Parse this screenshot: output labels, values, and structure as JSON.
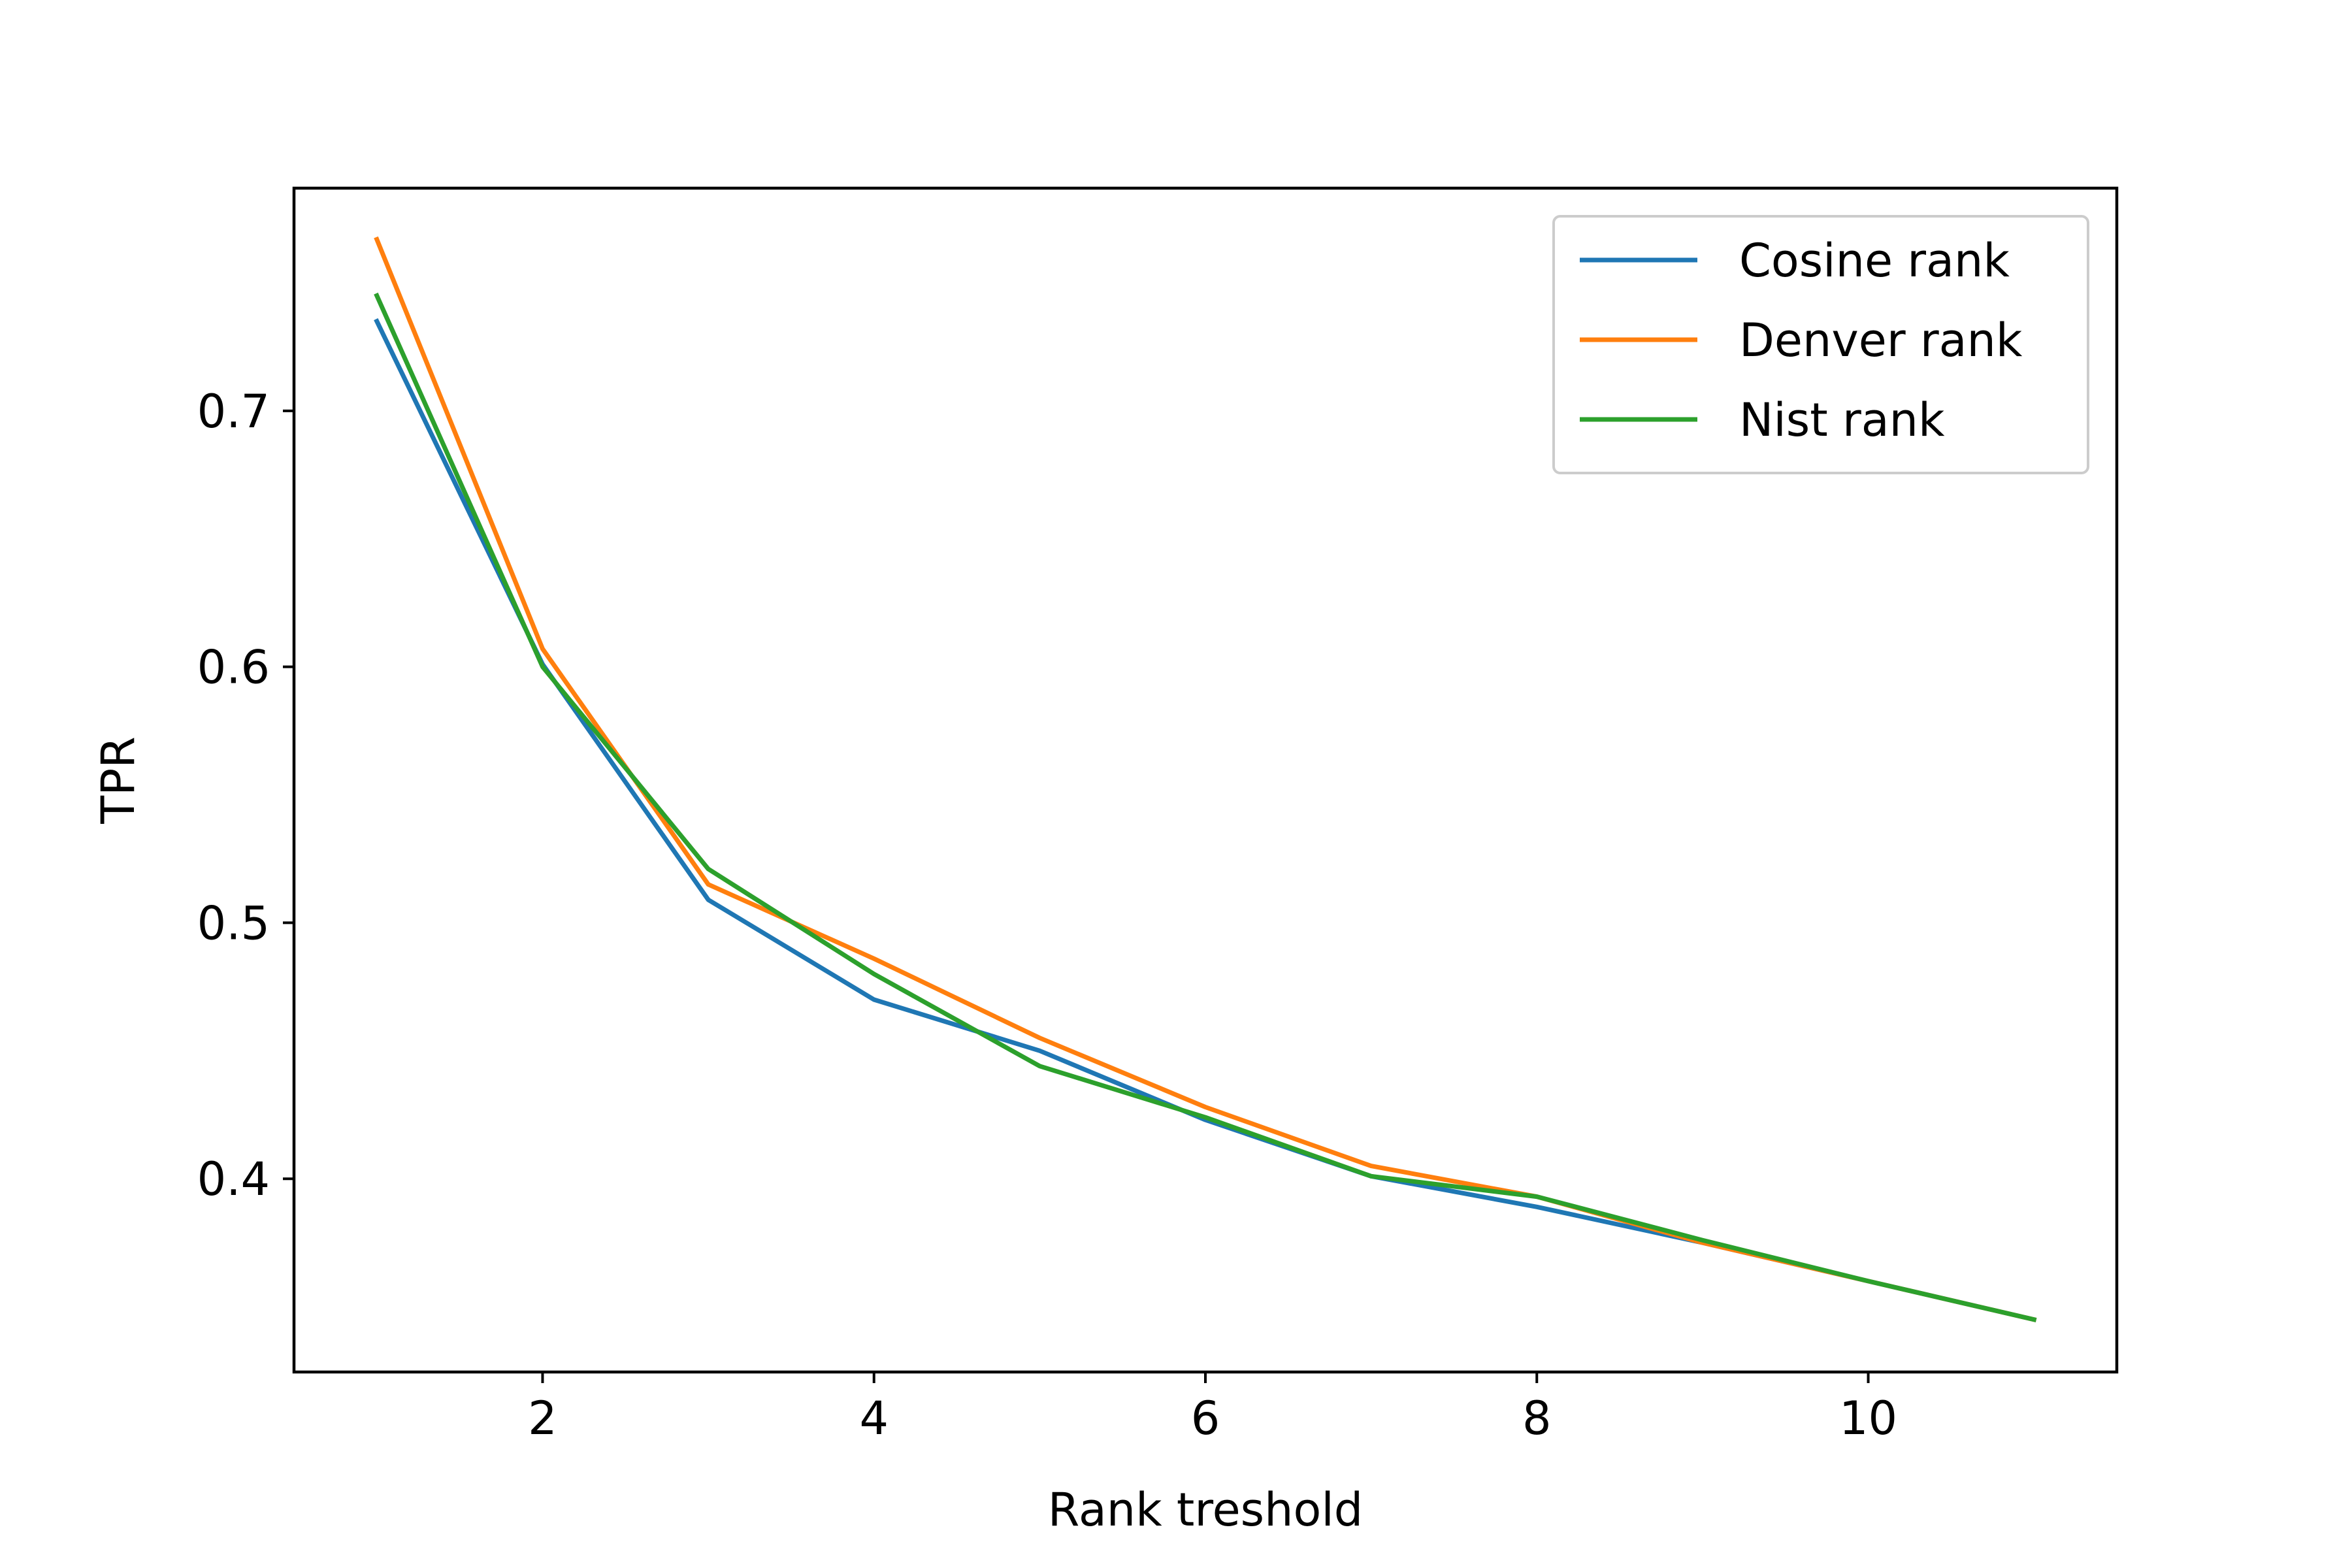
{
  "chart_data": {
    "type": "line",
    "xlabel": "Rank treshold",
    "ylabel": "TPR",
    "xlim": [
      0.5,
      11.5
    ],
    "ylim": [
      0.3245,
      0.787
    ],
    "xticks": [
      2,
      4,
      6,
      8,
      10
    ],
    "yticks": [
      0.4,
      0.5,
      0.6,
      0.7
    ],
    "grid": false,
    "legend_position": "top-right",
    "x": [
      1,
      2,
      3,
      4,
      5,
      6,
      7,
      8,
      9,
      10,
      11
    ],
    "series": [
      {
        "name": "Cosine rank",
        "color": "#1f77b4",
        "values": [
          0.735,
          0.601,
          0.509,
          0.47,
          0.45,
          0.423,
          0.401,
          0.389,
          0.375,
          0.36,
          0.345
        ]
      },
      {
        "name": "Denver rank",
        "color": "#ff7f0e",
        "values": [
          0.767,
          0.607,
          0.515,
          0.486,
          0.455,
          0.428,
          0.405,
          0.393,
          0.375,
          0.36,
          0.345
        ]
      },
      {
        "name": "Nist rank",
        "color": "#2ca02c",
        "values": [
          0.745,
          0.6,
          0.521,
          0.48,
          0.444,
          0.424,
          0.401,
          0.393,
          0.376,
          0.36,
          0.345
        ]
      }
    ]
  }
}
